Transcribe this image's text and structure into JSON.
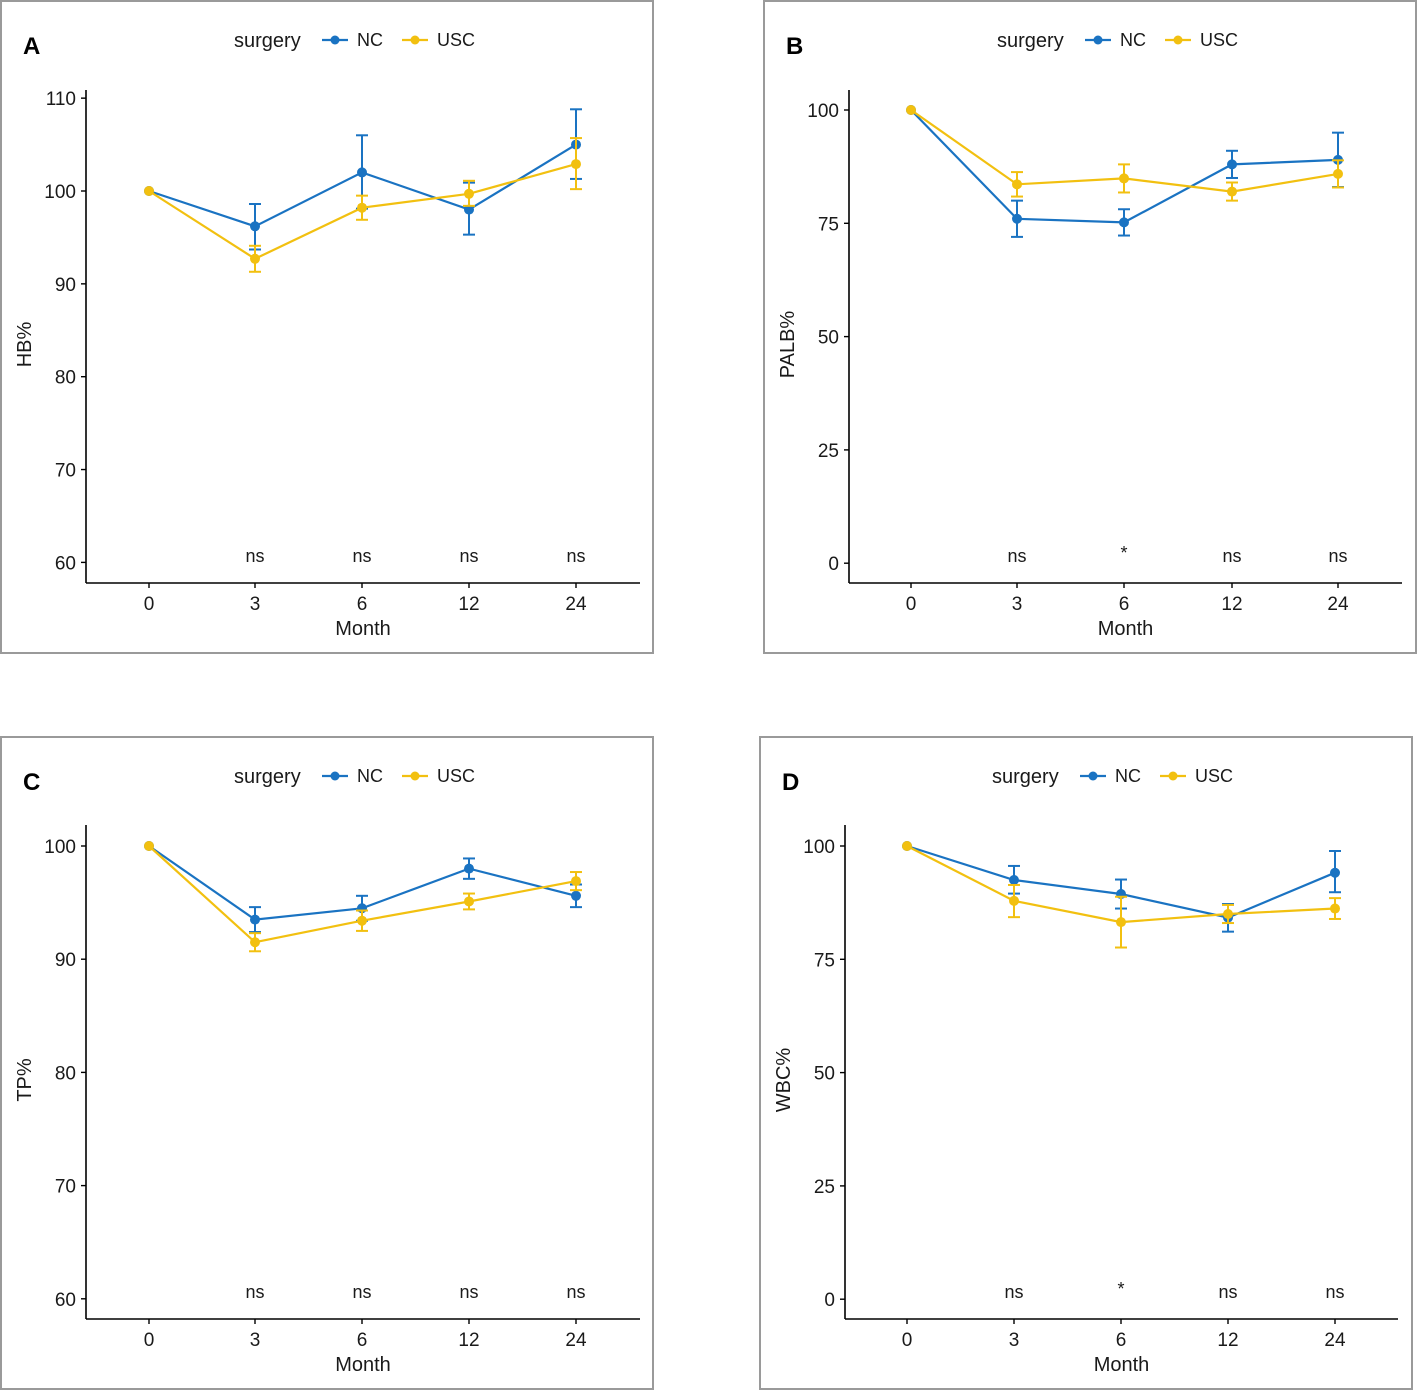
{
  "colors": {
    "NC": "#1a73c2",
    "USC": "#f2c010"
  },
  "chart_data": [
    {
      "type": "line",
      "panel": "A",
      "legend_title": "surgery",
      "xlabel": "Month",
      "ylabel": "HB%",
      "categories": [
        "0",
        "3",
        "6",
        "12",
        "24"
      ],
      "ylim": [
        59,
        111
      ],
      "yticks": [
        60,
        70,
        80,
        90,
        100,
        110
      ],
      "series": [
        {
          "name": "NC",
          "values": [
            100,
            96.2,
            102,
            98,
            105
          ],
          "lower": [
            100,
            93.7,
            98.1,
            95.3,
            101.3
          ],
          "upper": [
            100,
            98.6,
            106,
            100.9,
            108.8
          ]
        },
        {
          "name": "USC",
          "values": [
            100,
            92.7,
            98.2,
            99.7,
            102.9
          ],
          "lower": [
            100,
            91.3,
            96.9,
            98.4,
            100.2
          ],
          "upper": [
            100,
            94.1,
            99.5,
            101.1,
            105.7
          ]
        }
      ],
      "significance": [
        "",
        "ns",
        "ns",
        "ns",
        "ns"
      ]
    },
    {
      "type": "line",
      "panel": "B",
      "legend_title": "surgery",
      "xlabel": "Month",
      "ylabel": "PALB%",
      "categories": [
        "0",
        "3",
        "6",
        "12",
        "24"
      ],
      "ylim": [
        -3,
        105
      ],
      "yticks": [
        0,
        25,
        50,
        75,
        100
      ],
      "series": [
        {
          "name": "NC",
          "values": [
            100,
            76,
            75.2,
            88,
            89
          ],
          "lower": [
            100,
            72,
            72.3,
            85,
            83
          ],
          "upper": [
            100,
            80,
            78.1,
            91,
            95
          ]
        },
        {
          "name": "USC",
          "values": [
            100,
            83.6,
            84.9,
            82,
            85.9
          ],
          "lower": [
            100,
            80.9,
            81.8,
            80,
            82.9
          ],
          "upper": [
            100,
            86.3,
            88,
            84,
            88.9
          ]
        }
      ],
      "significance": [
        "",
        "ns",
        "*",
        "ns",
        "ns"
      ]
    },
    {
      "type": "line",
      "panel": "C",
      "legend_title": "surgery",
      "xlabel": "Month",
      "ylabel": "TP%",
      "categories": [
        "0",
        "3",
        "6",
        "12",
        "24"
      ],
      "ylim": [
        59,
        102
      ],
      "yticks": [
        60,
        70,
        80,
        90,
        100
      ],
      "series": [
        {
          "name": "NC",
          "values": [
            100,
            93.5,
            94.5,
            98,
            95.6
          ],
          "lower": [
            100,
            92.4,
            93.4,
            97.1,
            94.6
          ],
          "upper": [
            100,
            94.6,
            95.6,
            98.9,
            96.6
          ]
        },
        {
          "name": "USC",
          "values": [
            100,
            91.5,
            93.4,
            95.1,
            96.9
          ],
          "lower": [
            100,
            90.7,
            92.5,
            94.4,
            96.1
          ],
          "upper": [
            100,
            92.3,
            94.3,
            95.8,
            97.7
          ]
        }
      ],
      "significance": [
        "",
        "ns",
        "ns",
        "ns",
        "ns"
      ]
    },
    {
      "type": "line",
      "panel": "D",
      "legend_title": "surgery",
      "xlabel": "Month",
      "ylabel": "WBC%",
      "categories": [
        "0",
        "3",
        "6",
        "12",
        "24"
      ],
      "ylim": [
        -3,
        105
      ],
      "yticks": [
        0,
        25,
        50,
        75,
        100
      ],
      "series": [
        {
          "name": "NC",
          "values": [
            100,
            92.5,
            89.4,
            84.2,
            94.1
          ],
          "lower": [
            100,
            89.5,
            86.2,
            81.1,
            89.8
          ],
          "upper": [
            100,
            95.6,
            92.6,
            87.2,
            98.9
          ]
        },
        {
          "name": "USC",
          "values": [
            100,
            87.9,
            83.2,
            85,
            86.2
          ],
          "lower": [
            100,
            84.3,
            77.6,
            83,
            83.9
          ],
          "upper": [
            100,
            91.4,
            88.8,
            87,
            88.5
          ]
        }
      ],
      "significance": [
        "",
        "ns",
        "*",
        "ns",
        "ns"
      ]
    }
  ]
}
